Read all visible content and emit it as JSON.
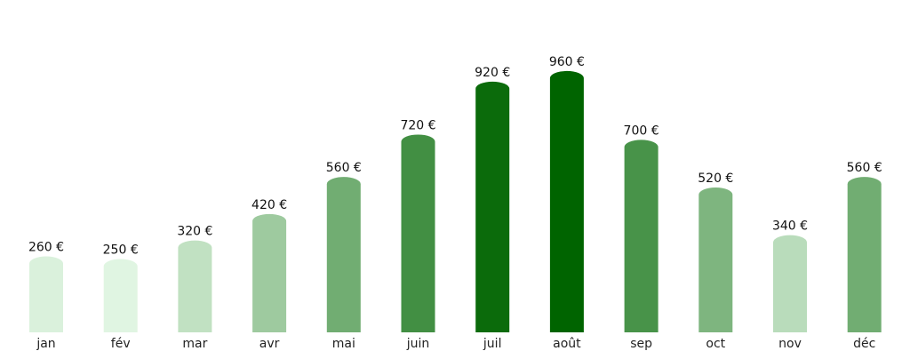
{
  "chart_data": {
    "type": "bar",
    "title": "",
    "xlabel": "",
    "ylabel": "",
    "categories": [
      "jan",
      "fév",
      "mar",
      "avr",
      "mai",
      "juin",
      "juil",
      "août",
      "sep",
      "oct",
      "nov",
      "déc"
    ],
    "values": [
      260,
      250,
      320,
      420,
      560,
      720,
      920,
      960,
      700,
      520,
      340,
      560
    ],
    "value_labels": [
      "260 €",
      "250 €",
      "320 €",
      "420 €",
      "560 €",
      "720 €",
      "920 €",
      "960 €",
      "700 €",
      "520 €",
      "340 €",
      "560 €"
    ],
    "ylim": [
      0,
      1000
    ],
    "grid": false,
    "legend": "none",
    "color_scale": {
      "low": "#e0f5e2",
      "high": "#006400"
    }
  }
}
